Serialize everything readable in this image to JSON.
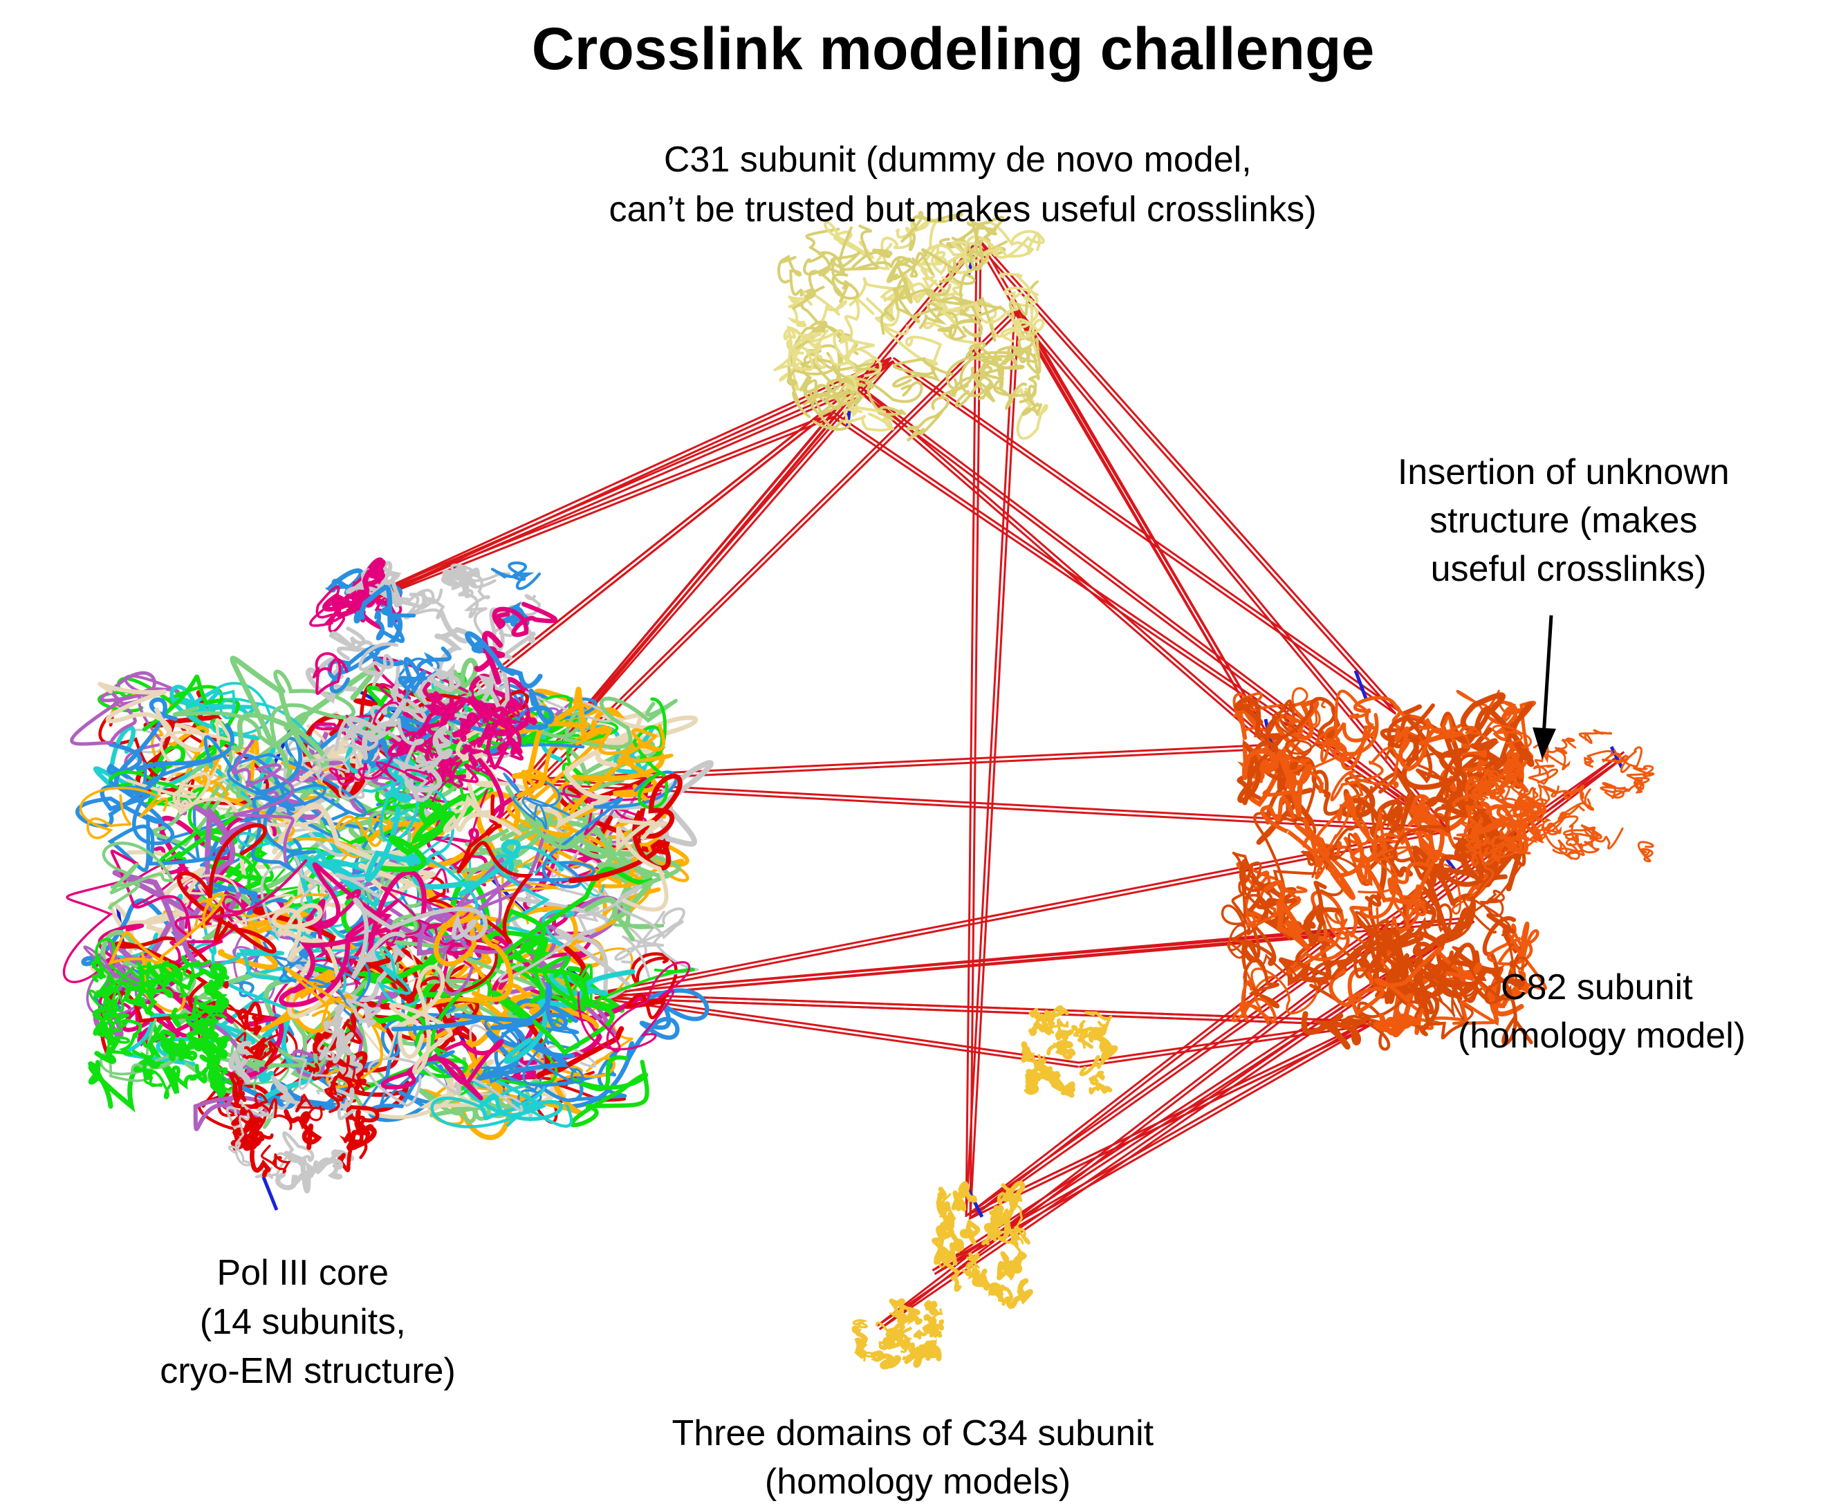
{
  "title": "Crosslink modeling challenge",
  "labels": {
    "c31": [
      "C31 subunit (dummy de novo model,",
      "can’t be trusted but makes useful crosslinks)"
    ],
    "insertion": [
      "Insertion of unknown",
      "structure (makes",
      "useful crosslinks)"
    ],
    "c82": [
      "C82 subunit",
      "(homology model)"
    ],
    "pol3": [
      "Pol III core",
      "(14 subunits,",
      "cryo-EM structure)"
    ],
    "c34": [
      "Three domains of C34 subunit",
      "(homology models)"
    ]
  },
  "colors": {
    "crosslink": "#d9161b",
    "intra_crosslink": "#1b22d6",
    "c31": "#e8df8a",
    "c82": "#f05a0e",
    "c34": "#f2c433",
    "pol3_core": [
      "#c8c8c8",
      "#e8d8b8",
      "#e4007c",
      "#2a8fe0",
      "#10e010",
      "#ffb000",
      "#e00000",
      "#20d0d0",
      "#7fd07f",
      "#b060c0"
    ],
    "arrow": "#000000"
  }
}
